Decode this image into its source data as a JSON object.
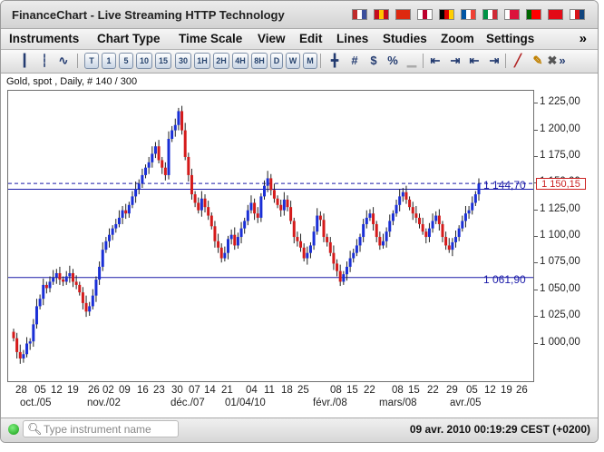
{
  "window": {
    "title": "FinanceChart - Live Streaming HTTP Technology"
  },
  "flags": [
    {
      "name": "usa-flag-icon",
      "colors": [
        "#bf2b2b",
        "#ffffff",
        "#3b4f9c"
      ]
    },
    {
      "name": "spain-flag-icon",
      "colors": [
        "#c60b1e",
        "#ffc400",
        "#c60b1e"
      ]
    },
    {
      "name": "china-flag-icon",
      "colors": [
        "#de2910",
        "#de2910",
        "#de2910"
      ]
    },
    {
      "name": "japan-flag-icon",
      "colors": [
        "#ffffff",
        "#bc002d",
        "#ffffff"
      ]
    },
    {
      "name": "germany-flag-icon",
      "colors": [
        "#000000",
        "#dd0000",
        "#ffce00"
      ]
    },
    {
      "name": "france-flag-icon",
      "colors": [
        "#0055a4",
        "#ffffff",
        "#ef4135"
      ]
    },
    {
      "name": "italy-flag-icon",
      "colors": [
        "#009246",
        "#ffffff",
        "#ce2b37"
      ]
    },
    {
      "name": "poland-flag-icon",
      "colors": [
        "#ffffff",
        "#dc143c",
        "#dc143c"
      ]
    },
    {
      "name": "portugal-flag-icon",
      "colors": [
        "#006600",
        "#ff0000",
        "#ff0000"
      ]
    },
    {
      "name": "turkey-flag-icon",
      "colors": [
        "#e30a17",
        "#e30a17",
        "#e30a17"
      ]
    },
    {
      "name": "czech-flag-icon",
      "colors": [
        "#ffffff",
        "#d7141a",
        "#11457e"
      ]
    }
  ],
  "menu": {
    "items": [
      "Instruments",
      "Chart Type",
      "Time Scale",
      "View",
      "Edit",
      "Lines",
      "Studies",
      "Zoom",
      "Settings"
    ],
    "more": "»"
  },
  "toolbar": {
    "chart_icons": [
      "candlestick-chart-icon",
      "bar-chart-icon",
      "line-chart-icon"
    ],
    "timescales": [
      "T",
      "1",
      "5",
      "10",
      "15",
      "30",
      "1H",
      "2H",
      "4H",
      "8H",
      "D",
      "W",
      "M"
    ],
    "tools": [
      "crosshair-icon",
      "grid-icon",
      "price-icon",
      "percent-icon",
      "volume-icon"
    ],
    "nav_icons": [
      "scroll-left-icon",
      "zoom-out-icon",
      "zoom-in-icon",
      "scroll-right-icon"
    ],
    "draw_icons": [
      "draw-line-icon",
      "pencil-icon",
      "delete-icon"
    ],
    "more": "»"
  },
  "instrument_label": "Gold, spot , Daily, # 140 / 300",
  "chart_data": {
    "type": "candlestick",
    "instrument": "Gold, spot",
    "timeframe": "Daily",
    "ylim": [
      980,
      1232
    ],
    "yticks": [
      "1 000,00",
      "1 025,00",
      "1 050,00",
      "1 075,00",
      "1 100,00",
      "1 125,00",
      "1 150,00",
      "1 175,00",
      "1 200,00",
      "1 225,00"
    ],
    "yticks_values": [
      1000,
      1025,
      1050,
      1075,
      1100,
      1125,
      1150,
      1175,
      1200,
      1225
    ],
    "xticks_days": [
      "28",
      "05",
      "12",
      "19",
      "26",
      "02",
      "09",
      "16",
      "23",
      "30",
      "07",
      "14",
      "21",
      "04",
      "11",
      "18",
      "25",
      "08",
      "15",
      "22",
      "08",
      "15",
      "22",
      "29",
      "05",
      "12",
      "19",
      "26"
    ],
    "xticks_months": [
      "oct./05",
      "nov./02",
      "déc./07",
      "01/04/10",
      "févr./08",
      "mars/08",
      "avr./05"
    ],
    "horizontal_levels": [
      1144.7,
      1061.9
    ],
    "horizontal_level_labels": [
      "1 144,70",
      "1 061,90"
    ],
    "current_price": 1150.15,
    "current_price_label": "1 150,15",
    "up_color": "#1a2fd6",
    "down_color": "#d41a1a",
    "closes": [
      1005,
      992,
      986,
      990,
      1000,
      1002,
      1018,
      1035,
      1042,
      1055,
      1052,
      1058,
      1062,
      1066,
      1060,
      1058,
      1063,
      1066,
      1058,
      1055,
      1048,
      1038,
      1030,
      1035,
      1045,
      1060,
      1072,
      1088,
      1096,
      1102,
      1108,
      1112,
      1118,
      1125,
      1122,
      1130,
      1138,
      1145,
      1150,
      1158,
      1165,
      1170,
      1178,
      1185,
      1172,
      1165,
      1158,
      1192,
      1200,
      1205,
      1218,
      1200,
      1175,
      1158,
      1140,
      1132,
      1125,
      1136,
      1128,
      1120,
      1110,
      1096,
      1090,
      1080,
      1085,
      1098,
      1102,
      1092,
      1100,
      1108,
      1115,
      1125,
      1132,
      1122,
      1118,
      1138,
      1148,
      1155,
      1144,
      1136,
      1130,
      1125,
      1135,
      1128,
      1115,
      1100,
      1096,
      1090,
      1080,
      1085,
      1092,
      1105,
      1120,
      1116,
      1100,
      1095,
      1085,
      1075,
      1068,
      1058,
      1065,
      1072,
      1080,
      1085,
      1092,
      1100,
      1112,
      1118,
      1122,
      1112,
      1100,
      1092,
      1096,
      1105,
      1115,
      1122,
      1130,
      1138,
      1142,
      1135,
      1128,
      1122,
      1118,
      1112,
      1105,
      1100,
      1108,
      1115,
      1120,
      1112,
      1100,
      1092,
      1088,
      1095,
      1100,
      1108,
      1115,
      1122,
      1125,
      1132,
      1140,
      1150
    ]
  },
  "status": {
    "search_placeholder": "Type instrument name",
    "datetime": "09 avr. 2010 00:19:29",
    "timezone": "CEST (+0200)"
  }
}
